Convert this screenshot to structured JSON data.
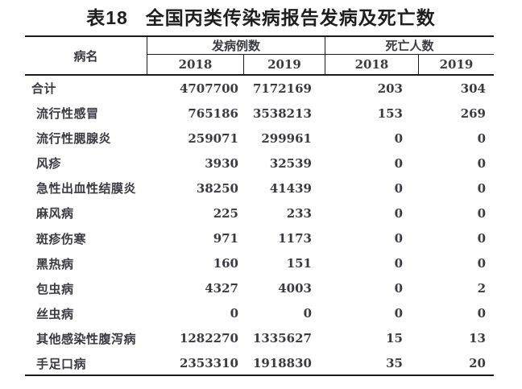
{
  "title": {
    "prefix": "表18",
    "main": "全国丙类传染病报告发病及死亡数"
  },
  "colors": {
    "text": "#3a3a42",
    "title": "#1e1e1e",
    "border": "#1a1a1a",
    "background": "#ffffff"
  },
  "table": {
    "disease_header": "病名",
    "incidence_group_header": "发病例数",
    "deaths_group_header": "死亡人数",
    "year_headers": {
      "incidence_2018": "2018",
      "incidence_2019": "2019",
      "deaths_2018": "2018",
      "deaths_2019": "2019"
    },
    "rows": [
      {
        "name": "合计",
        "total": true,
        "incidence_2018": "4707700",
        "incidence_2019": "7172169",
        "deaths_2018": "203",
        "deaths_2019": "304"
      },
      {
        "name": "流行性感冒",
        "total": false,
        "incidence_2018": "765186",
        "incidence_2019": "3538213",
        "deaths_2018": "153",
        "deaths_2019": "269"
      },
      {
        "name": "流行性腮腺炎",
        "total": false,
        "incidence_2018": "259071",
        "incidence_2019": "299961",
        "deaths_2018": "0",
        "deaths_2019": "0"
      },
      {
        "name": "风疹",
        "total": false,
        "incidence_2018": "3930",
        "incidence_2019": "32539",
        "deaths_2018": "0",
        "deaths_2019": "0"
      },
      {
        "name": "急性出血性结膜炎",
        "total": false,
        "incidence_2018": "38250",
        "incidence_2019": "41439",
        "deaths_2018": "0",
        "deaths_2019": "0"
      },
      {
        "name": "麻风病",
        "total": false,
        "incidence_2018": "225",
        "incidence_2019": "233",
        "deaths_2018": "0",
        "deaths_2019": "0"
      },
      {
        "name": "斑疹伤寒",
        "total": false,
        "incidence_2018": "971",
        "incidence_2019": "1173",
        "deaths_2018": "0",
        "deaths_2019": "0"
      },
      {
        "name": "黑热病",
        "total": false,
        "incidence_2018": "160",
        "incidence_2019": "151",
        "deaths_2018": "0",
        "deaths_2019": "0"
      },
      {
        "name": "包虫病",
        "total": false,
        "incidence_2018": "4327",
        "incidence_2019": "4003",
        "deaths_2018": "0",
        "deaths_2019": "2"
      },
      {
        "name": "丝虫病",
        "total": false,
        "incidence_2018": "0",
        "incidence_2019": "0",
        "deaths_2018": "0",
        "deaths_2019": "0"
      },
      {
        "name": "其他感染性腹泻病",
        "total": false,
        "incidence_2018": "1282270",
        "incidence_2019": "1335627",
        "deaths_2018": "15",
        "deaths_2019": "13"
      },
      {
        "name": "手足口病",
        "total": false,
        "incidence_2018": "2353310",
        "incidence_2019": "1918830",
        "deaths_2018": "35",
        "deaths_2019": "20"
      }
    ]
  }
}
